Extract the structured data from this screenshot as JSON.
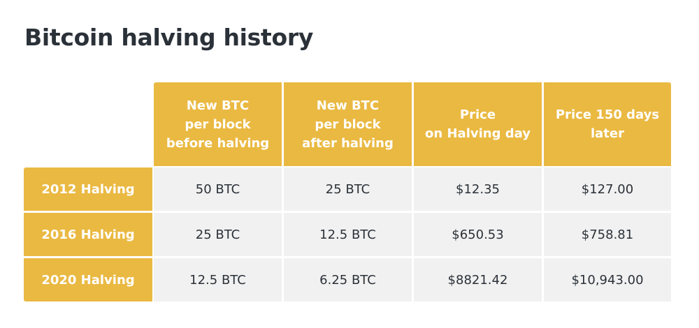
{
  "title": "Bitcoin halving history",
  "colors": {
    "accent": "#eab942",
    "cell_background": "#f1f1f1",
    "title_text": "#2b3138",
    "header_text": "#ffffff"
  },
  "table": {
    "columns": [
      "New BTC\nper block\nbefore halving",
      "New BTC\nper block\nafter halving",
      "Price\non Halving day",
      "Price 150 days\nlater"
    ],
    "rows": [
      {
        "label": "2012 Halving",
        "cells": [
          "50 BTC",
          "25 BTC",
          "$12.35",
          "$127.00"
        ]
      },
      {
        "label": "2016 Halving",
        "cells": [
          "25 BTC",
          "12.5 BTC",
          "$650.53",
          "$758.81"
        ]
      },
      {
        "label": "2020 Halving",
        "cells": [
          "12.5 BTC",
          "6.25 BTC",
          "$8821.42",
          "$10,943.00"
        ]
      }
    ]
  }
}
